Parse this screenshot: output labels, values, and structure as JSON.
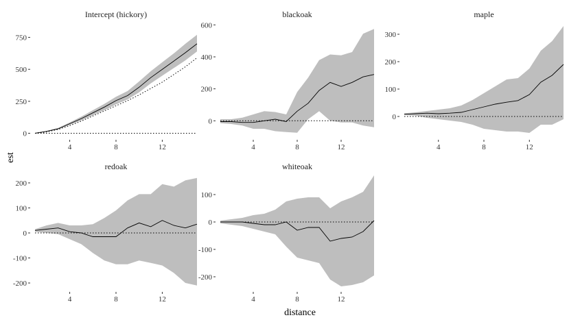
{
  "chart_data": {
    "type": "area",
    "xlabel": "distance",
    "ylabel": "est",
    "colors": {
      "band": "#bebebe",
      "line": "#000000",
      "background": "#ffffff"
    },
    "x": [
      1,
      2,
      3,
      4,
      5,
      6,
      7,
      8,
      9,
      10,
      11,
      12,
      13,
      14,
      15
    ],
    "xticks": [
      4,
      8,
      12
    ],
    "panels": [
      {
        "title": "Intercept (hickory)",
        "ylim": [
          -40,
          860
        ],
        "yticks": [
          0,
          250,
          500,
          750
        ],
        "est": [
          0,
          15,
          35,
          75,
          115,
          160,
          205,
          255,
          295,
          360,
          435,
          500,
          565,
          630,
          700
        ],
        "lower": [
          0,
          12,
          30,
          65,
          100,
          140,
          180,
          225,
          265,
          320,
          390,
          450,
          510,
          570,
          640
        ],
        "upper": [
          0,
          18,
          42,
          85,
          130,
          180,
          230,
          285,
          330,
          405,
          485,
          555,
          625,
          700,
          770
        ],
        "ref": [
          0,
          0,
          0,
          0,
          0,
          0,
          0,
          0,
          0,
          0,
          0,
          0,
          0,
          0,
          0
        ],
        "ref2": [
          0,
          10,
          30,
          60,
          95,
          135,
          175,
          215,
          255,
          300,
          350,
          400,
          460,
          520,
          590
        ]
      },
      {
        "title": "blackoak",
        "ylim": [
          -110,
          610
        ],
        "yticks": [
          0,
          200,
          400,
          600
        ],
        "est": [
          -5,
          -5,
          -10,
          -10,
          0,
          10,
          -5,
          60,
          110,
          190,
          240,
          215,
          240,
          275,
          290
        ],
        "lower": [
          -15,
          -20,
          -30,
          -50,
          -50,
          -65,
          -70,
          -75,
          10,
          60,
          0,
          -10,
          -10,
          -30,
          -40
        ],
        "upper": [
          10,
          10,
          20,
          40,
          60,
          55,
          40,
          180,
          270,
          380,
          415,
          410,
          430,
          545,
          575
        ],
        "ref": [
          0,
          0,
          0,
          0,
          0,
          0,
          0,
          0,
          0,
          0,
          0,
          0,
          0,
          0,
          0
        ]
      },
      {
        "title": "maple",
        "ylim": [
          -80,
          340
        ],
        "yticks": [
          0,
          100,
          200,
          300
        ],
        "est": [
          8,
          10,
          12,
          10,
          12,
          15,
          25,
          35,
          45,
          52,
          58,
          80,
          125,
          150,
          190
        ],
        "lower": [
          5,
          3,
          -5,
          -10,
          -15,
          -20,
          -30,
          -45,
          -50,
          -55,
          -55,
          -60,
          -30,
          -30,
          -10
        ],
        "upper": [
          12,
          15,
          20,
          25,
          30,
          40,
          60,
          85,
          110,
          135,
          140,
          175,
          240,
          275,
          330
        ],
        "ref": [
          0,
          0,
          0,
          0,
          0,
          0,
          0,
          0,
          0,
          0,
          0,
          0,
          0,
          0,
          0
        ]
      },
      {
        "title": "redoak",
        "ylim": [
          -230,
          230
        ],
        "yticks": [
          -200,
          -100,
          0,
          100,
          200
        ],
        "est": [
          10,
          15,
          20,
          5,
          0,
          -15,
          -15,
          -15,
          20,
          40,
          25,
          50,
          30,
          20,
          35
        ],
        "lower": [
          5,
          0,
          -5,
          -25,
          -45,
          -80,
          -110,
          -125,
          -125,
          -110,
          -120,
          -130,
          -160,
          -200,
          -210
        ],
        "upper": [
          15,
          30,
          40,
          30,
          30,
          35,
          60,
          90,
          130,
          155,
          155,
          195,
          185,
          210,
          220
        ],
        "ref": [
          0,
          0,
          0,
          0,
          0,
          0,
          0,
          0,
          0,
          0,
          0,
          0,
          0,
          0,
          0
        ]
      },
      {
        "title": "whiteoak",
        "ylim": [
          -250,
          170
        ],
        "yticks": [
          -200,
          -100,
          0,
          100
        ],
        "est": [
          0,
          0,
          0,
          -5,
          -10,
          -10,
          0,
          -30,
          -20,
          -20,
          -70,
          -60,
          -55,
          -35,
          5
        ],
        "lower": [
          -5,
          -10,
          -15,
          -25,
          -35,
          -45,
          -90,
          -130,
          -140,
          -150,
          -210,
          -235,
          -230,
          -220,
          -195
        ],
        "upper": [
          5,
          10,
          15,
          25,
          30,
          45,
          75,
          85,
          90,
          90,
          50,
          75,
          90,
          110,
          170
        ],
        "ref": [
          0,
          0,
          0,
          0,
          0,
          0,
          0,
          0,
          0,
          0,
          0,
          0,
          0,
          0,
          0
        ]
      }
    ]
  }
}
